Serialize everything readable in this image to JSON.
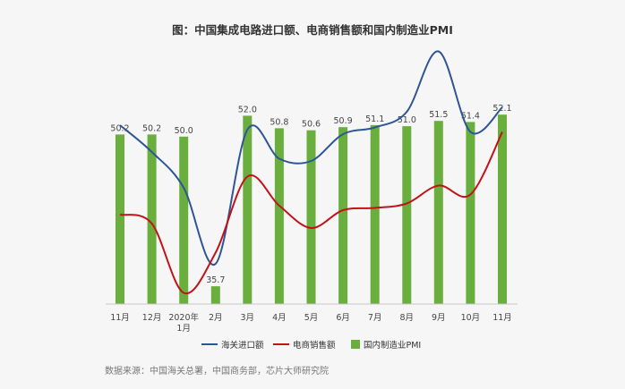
{
  "chart_data": {
    "type": "bar+line",
    "title": "图：中国集成电路进口额、电商销售额和国内制造业PMI",
    "categories": [
      "11月",
      "12月",
      "2020年\n1月",
      "2月",
      "3月",
      "4月",
      "5月",
      "6月",
      "7月",
      "8月",
      "9月",
      "10月",
      "11月"
    ],
    "pmi": {
      "name": "国内制造业PMI",
      "color": "#6aae3e",
      "values": [
        50.2,
        50.2,
        50.0,
        35.7,
        52.0,
        50.8,
        50.6,
        50.9,
        51.1,
        51.0,
        51.5,
        51.4,
        52.1
      ],
      "labels": [
        "50.2",
        "50.2",
        "50.0",
        "35.7",
        "52.0",
        "50.8",
        "50.6",
        "50.9",
        "51.1",
        "51.0",
        "51.5",
        "51.4",
        "52.1"
      ],
      "ylim": [
        34,
        52.8
      ]
    },
    "lines": [
      {
        "name": "海关进口额",
        "color": "#2e5597",
        "values": [
          80,
          68,
          52,
          18,
          78,
          65,
          64,
          76,
          79,
          86,
          113,
          77,
          88
        ],
        "ylim": [
          0,
          120
        ]
      },
      {
        "name": "电商销售额",
        "color": "#c0141a",
        "values": [
          40,
          36,
          5,
          23,
          57,
          44,
          34,
          42,
          43,
          45,
          53,
          49,
          77
        ],
        "ylim": [
          0,
          120
        ]
      }
    ],
    "legend": [
      "海关进口额",
      "电商销售额",
      "国内制造业PMI"
    ],
    "legend_position": "bottom",
    "grid": false
  },
  "source": "数据来源：中国海关总署，中国商务部，芯片大师研究院"
}
